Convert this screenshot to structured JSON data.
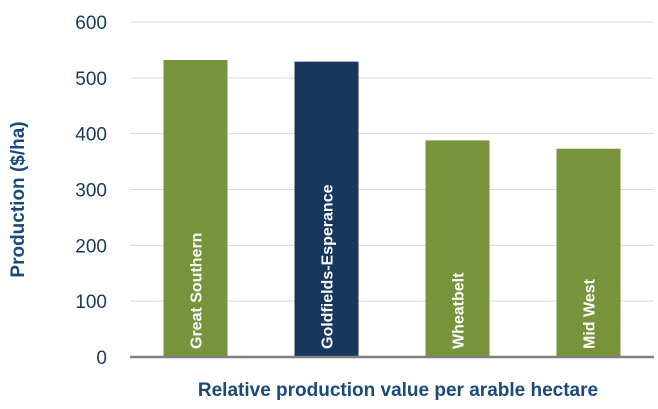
{
  "chart_data": {
    "type": "bar",
    "categories": [
      "Great Southern",
      "Goldfields-Esperance",
      "Wheatbelt",
      "Mid West"
    ],
    "values": [
      532,
      529,
      388,
      373
    ],
    "bar_colors": [
      "#77933c",
      "#17375e",
      "#77933c",
      "#77933c"
    ],
    "ylabel": "Production ($/ha)",
    "xlabel": "Relative production value per arable hectare",
    "ylim": [
      0,
      600
    ],
    "yticks": [
      0,
      100,
      200,
      300,
      400,
      500,
      600
    ],
    "grid": true,
    "legend": "none"
  },
  "colors": {
    "green_bar": "#77933c",
    "navy_bar": "#17375e",
    "axis_text": "#1a4a7a"
  }
}
